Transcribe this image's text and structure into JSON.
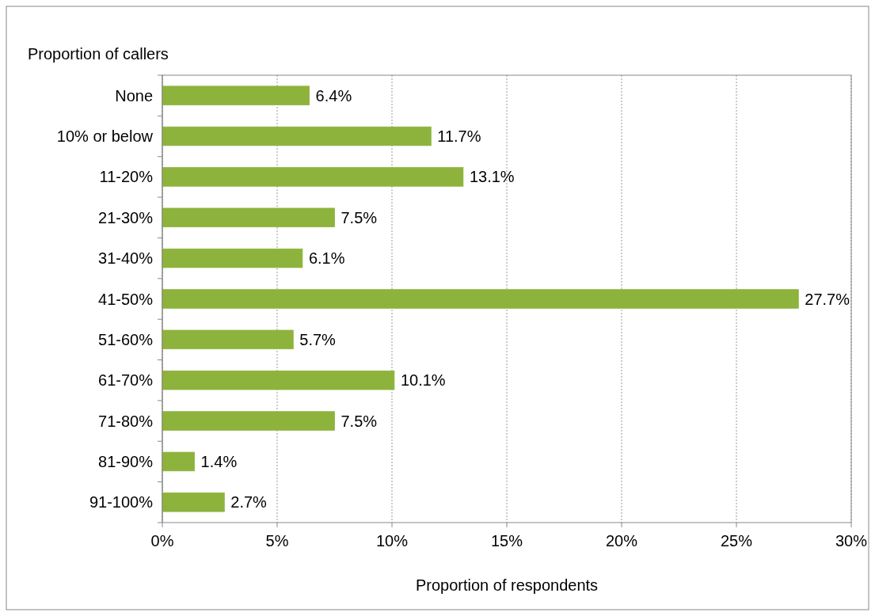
{
  "chart_data": {
    "type": "bar",
    "orientation": "horizontal",
    "ylabel": "Proportion of callers",
    "xlabel": "Proportion of respondents",
    "categories": [
      "None",
      "10% or below",
      "11-20%",
      "21-30%",
      "31-40%",
      "41-50%",
      "51-60%",
      "61-70%",
      "71-80%",
      "81-90%",
      "91-100%"
    ],
    "values": [
      6.4,
      11.7,
      13.1,
      7.5,
      6.1,
      27.7,
      5.7,
      10.1,
      7.5,
      1.4,
      2.7
    ],
    "value_labels": [
      "6.4%",
      "11.7%",
      "13.1%",
      "7.5%",
      "6.1%",
      "27.7%",
      "5.7%",
      "10.1%",
      "7.5%",
      "1.4%",
      "2.7%"
    ],
    "color": "#8db33c",
    "xlim": [
      0,
      30
    ],
    "xticks": [
      {
        "value": 0,
        "label": "0%"
      },
      {
        "value": 5,
        "label": "5%"
      },
      {
        "value": 10,
        "label": "10%"
      },
      {
        "value": 15,
        "label": "15%"
      },
      {
        "value": 20,
        "label": "20%"
      },
      {
        "value": 25,
        "label": "25%"
      },
      {
        "value": 30,
        "label": "30%"
      }
    ],
    "grid": "x"
  }
}
